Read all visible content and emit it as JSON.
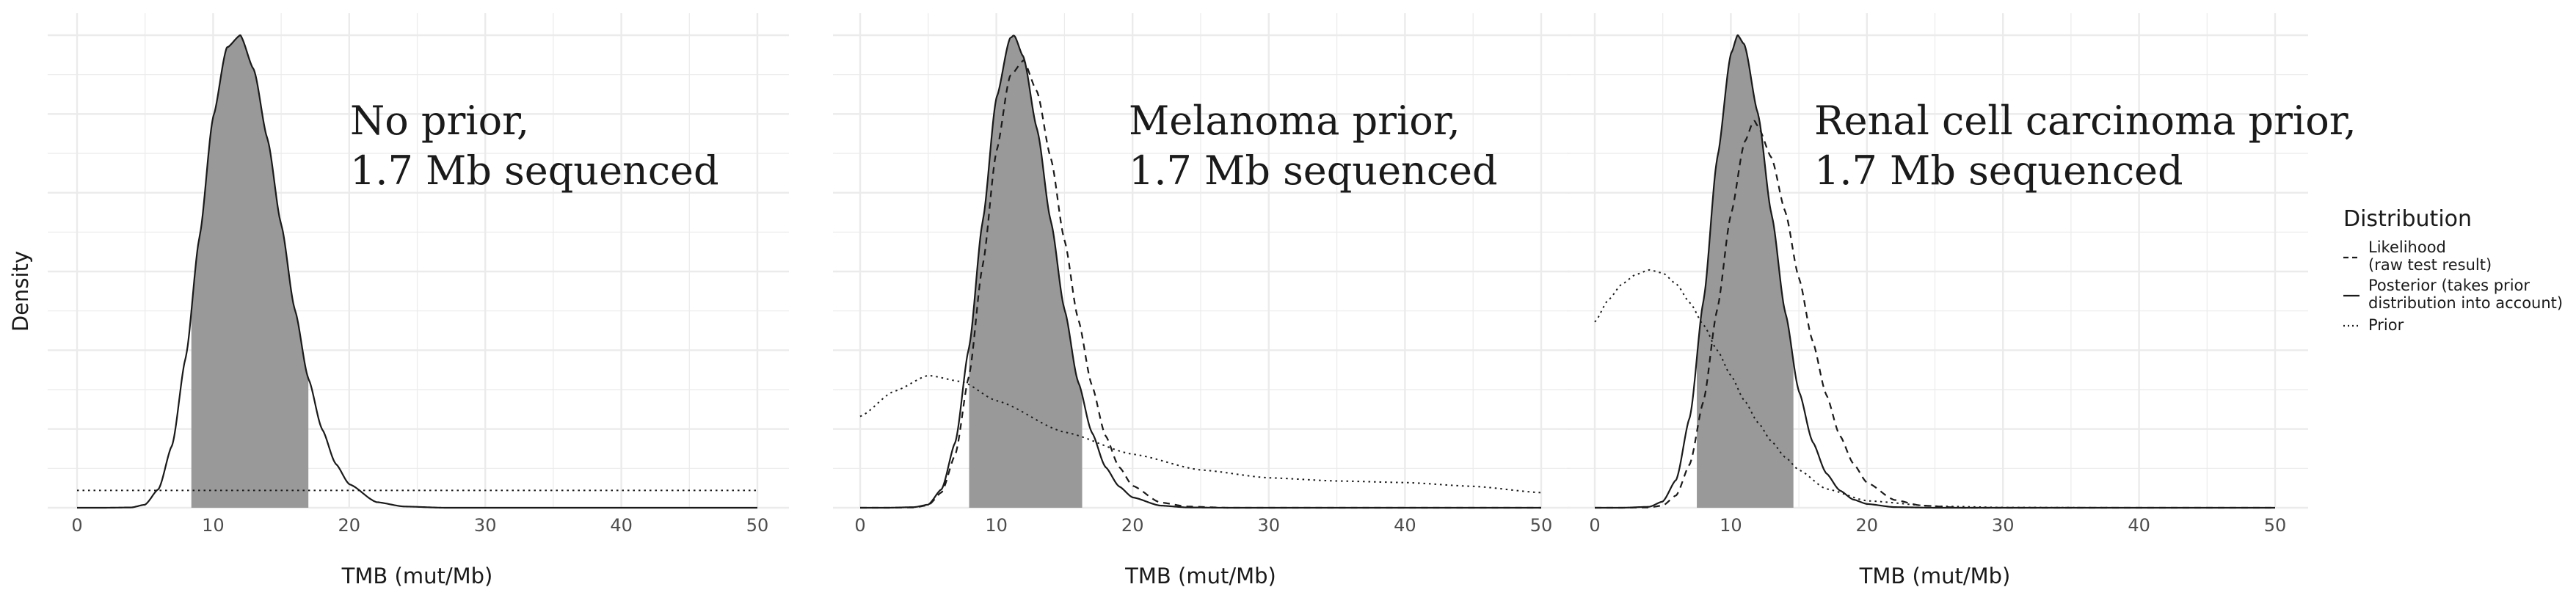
{
  "figure": {
    "ylabel": "Density",
    "legend": {
      "title": "Distribution",
      "placement": "right",
      "items": [
        {
          "key": "likelihood",
          "line1": "Likelihood",
          "line2": "(raw test result)",
          "linetype": "dashed"
        },
        {
          "key": "posterior",
          "line1": "Posterior (takes prior",
          "line2": "distribution into account)",
          "linetype": "solid"
        },
        {
          "key": "prior",
          "line1": "Prior",
          "line2": "",
          "linetype": "dotted"
        }
      ]
    },
    "colors": {
      "curve": "#1a1a1a",
      "shade": "#999999",
      "grid": "#ebebeb",
      "text": "#1a1a1a",
      "tick": "#4d4d4d"
    }
  },
  "chart_data": [
    {
      "type": "line",
      "title_line1": "No prior,",
      "title_line2": "1.7 Mb sequenced",
      "xlabel": "TMB (mut/Mb)",
      "ylabel": "Density",
      "xlim": [
        0,
        50
      ],
      "ylim": [
        0,
        0.15
      ],
      "xticks": [
        0,
        10,
        20,
        30,
        40,
        50
      ],
      "grid": true,
      "shaded_interval": [
        8.4,
        17.0
      ],
      "series": [
        {
          "key": "posterior",
          "linetype": "solid",
          "shape": "skewed",
          "x": [
            0,
            2,
            4,
            5,
            6,
            7,
            8,
            9,
            10,
            11,
            12,
            13,
            14,
            15,
            16,
            17,
            18,
            19,
            20,
            22,
            24,
            27,
            30,
            40,
            50
          ],
          "y": [
            0.0,
            0.0,
            0.0001,
            0.001,
            0.006,
            0.02,
            0.048,
            0.086,
            0.124,
            0.146,
            0.15,
            0.139,
            0.117,
            0.09,
            0.063,
            0.041,
            0.025,
            0.014,
            0.0075,
            0.0018,
            0.0004,
            0.0,
            0.0,
            0.0,
            0.0
          ]
        },
        {
          "key": "prior",
          "linetype": "dotted",
          "x": [
            0,
            50
          ],
          "y": [
            0.0055,
            0.0055
          ]
        }
      ]
    },
    {
      "type": "line",
      "title_line1": "Melanoma prior,",
      "title_line2": "1.7 Mb sequenced",
      "xlabel": "TMB (mut/Mb)",
      "ylabel": "Density",
      "xlim": [
        0,
        50
      ],
      "ylim": [
        0,
        0.15
      ],
      "xticks": [
        0,
        10,
        20,
        30,
        40,
        50
      ],
      "grid": true,
      "shaded_interval": [
        8.0,
        16.3
      ],
      "series": [
        {
          "key": "posterior",
          "linetype": "solid",
          "shape": "skewed",
          "x": [
            0,
            2,
            4,
            5,
            6,
            7,
            8,
            9,
            10,
            11,
            11.3,
            12,
            13,
            14,
            15,
            16,
            17,
            18,
            19,
            20,
            22,
            24,
            27,
            30,
            40,
            50
          ],
          "y": [
            0.0,
            0.0,
            0.0002,
            0.001,
            0.006,
            0.021,
            0.051,
            0.091,
            0.13,
            0.149,
            0.15,
            0.143,
            0.12,
            0.091,
            0.063,
            0.04,
            0.024,
            0.013,
            0.0068,
            0.0033,
            0.0007,
            0.0001,
            0.0,
            0.0,
            0.0,
            0.0
          ]
        },
        {
          "key": "likelihood",
          "linetype": "dashed",
          "shape": "skewed",
          "x": [
            0,
            2,
            4,
            5,
            6,
            7,
            8,
            9,
            10,
            11,
            12,
            13,
            14,
            15,
            16,
            17,
            18,
            19,
            20,
            22,
            24,
            27,
            30,
            40,
            50
          ],
          "y": [
            0.0,
            0.0,
            0.0001,
            0.0008,
            0.005,
            0.017,
            0.042,
            0.077,
            0.113,
            0.137,
            0.142,
            0.132,
            0.111,
            0.085,
            0.06,
            0.039,
            0.023,
            0.013,
            0.007,
            0.0017,
            0.0004,
            0.0,
            0.0,
            0.0,
            0.0
          ]
        },
        {
          "key": "prior",
          "linetype": "dotted",
          "x": [
            0,
            2.5,
            5,
            7.5,
            10,
            15,
            20,
            25,
            30,
            35,
            40,
            45,
            50
          ],
          "y": [
            0.029,
            0.037,
            0.042,
            0.04,
            0.034,
            0.024,
            0.017,
            0.012,
            0.0095,
            0.0085,
            0.008,
            0.0068,
            0.0048
          ]
        }
      ]
    },
    {
      "type": "line",
      "title_line1": "Renal cell carcinoma prior,",
      "title_line2": "1.7 Mb sequenced",
      "xlabel": "TMB (mut/Mb)",
      "ylabel": "Density",
      "xlim": [
        0,
        50
      ],
      "ylim": [
        0,
        0.15
      ],
      "xticks": [
        0,
        10,
        20,
        30,
        40,
        50
      ],
      "grid": true,
      "shaded_interval": [
        7.5,
        14.6
      ],
      "series": [
        {
          "key": "posterior",
          "linetype": "solid",
          "shape": "skewed",
          "x": [
            0,
            2,
            4,
            5,
            6,
            7,
            8,
            9,
            10,
            10.5,
            11,
            12,
            13,
            14,
            15,
            16,
            17,
            18,
            19,
            20,
            22,
            25,
            30,
            40,
            50
          ],
          "y": [
            0.0,
            0.0,
            0.0003,
            0.002,
            0.009,
            0.029,
            0.066,
            0.111,
            0.144,
            0.15,
            0.147,
            0.125,
            0.093,
            0.062,
            0.037,
            0.021,
            0.011,
            0.0055,
            0.0026,
            0.0012,
            0.0002,
            0.0,
            0.0,
            0.0,
            0.0
          ]
        },
        {
          "key": "likelihood",
          "linetype": "dashed",
          "shape": "skewed",
          "x": [
            0,
            2,
            4,
            5,
            6,
            7,
            8,
            9,
            10,
            11,
            11.7,
            12,
            13,
            14,
            15,
            16,
            17,
            18,
            19,
            20,
            22,
            24,
            27,
            30,
            40,
            50
          ],
          "y": [
            0.0,
            0.0,
            0.0001,
            0.0007,
            0.004,
            0.014,
            0.034,
            0.063,
            0.093,
            0.116,
            0.123,
            0.121,
            0.111,
            0.094,
            0.073,
            0.053,
            0.036,
            0.023,
            0.014,
            0.008,
            0.0025,
            0.0007,
            0.0,
            0.0,
            0.0,
            0.0
          ]
        },
        {
          "key": "prior",
          "linetype": "dotted",
          "x": [
            0,
            1,
            2,
            3,
            4,
            5,
            6,
            7,
            8,
            9,
            10,
            11,
            12,
            13,
            14,
            15,
            17,
            20,
            25,
            30,
            40,
            50
          ],
          "y": [
            0.059,
            0.066,
            0.071,
            0.074,
            0.0755,
            0.0745,
            0.071,
            0.065,
            0.058,
            0.05,
            0.042,
            0.034,
            0.027,
            0.021,
            0.016,
            0.012,
            0.006,
            0.0022,
            0.0005,
            0.0001,
            0.0,
            0.0
          ]
        }
      ]
    }
  ]
}
